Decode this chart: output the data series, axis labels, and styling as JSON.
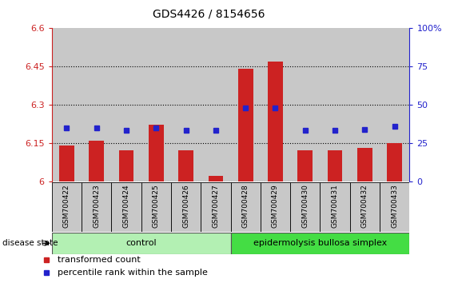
{
  "title": "GDS4426 / 8154656",
  "samples": [
    "GSM700422",
    "GSM700423",
    "GSM700424",
    "GSM700425",
    "GSM700426",
    "GSM700427",
    "GSM700428",
    "GSM700429",
    "GSM700430",
    "GSM700431",
    "GSM700432",
    "GSM700433"
  ],
  "transformed_count": [
    6.14,
    6.16,
    6.12,
    6.22,
    6.12,
    6.02,
    6.44,
    6.47,
    6.12,
    6.12,
    6.13,
    6.15
  ],
  "percentile_rank": [
    35,
    35,
    33,
    35,
    33,
    33,
    48,
    48,
    33,
    33,
    34,
    36
  ],
  "ylim_left": [
    6.0,
    6.6
  ],
  "ylim_right": [
    0,
    100
  ],
  "yticks_left": [
    6.0,
    6.15,
    6.3,
    6.45,
    6.6
  ],
  "yticks_right": [
    0,
    25,
    50,
    75,
    100
  ],
  "ytick_labels_left": [
    "6",
    "6.15",
    "6.3",
    "6.45",
    "6.6"
  ],
  "ytick_labels_right": [
    "0",
    "25",
    "50",
    "75",
    "100%"
  ],
  "n_control": 6,
  "bar_color": "#cc2222",
  "square_color": "#2222cc",
  "control_color": "#b3f0b3",
  "disease_color": "#44dd44",
  "bg_gray": "#c8c8c8",
  "grid_color": "#000000",
  "left_tick_color": "#cc2222",
  "right_tick_color": "#2222cc",
  "bar_width": 0.5
}
